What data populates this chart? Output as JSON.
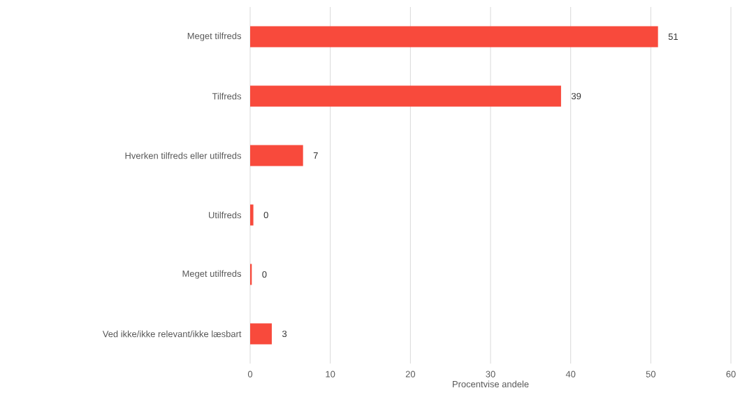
{
  "chart_data": {
    "type": "bar",
    "orientation": "horizontal",
    "categories": [
      "Meget tilfreds",
      "Tilfreds",
      "Hverken tilfreds eller utilfreds",
      "Utilfreds",
      "Meget utilfreds",
      "Ved ikke/ikke relevant/ikke læsbart"
    ],
    "values": [
      50.9,
      38.8,
      6.6,
      0.4,
      0.2,
      2.7
    ],
    "value_labels": [
      "51",
      "39",
      "7",
      "0",
      "0",
      "3"
    ],
    "color": "#f84a3c",
    "xlabel": "Procentvise andele",
    "xlim": [
      0,
      60
    ],
    "xticks": [
      0,
      10,
      20,
      30,
      40,
      50,
      60
    ],
    "grid": "x"
  }
}
